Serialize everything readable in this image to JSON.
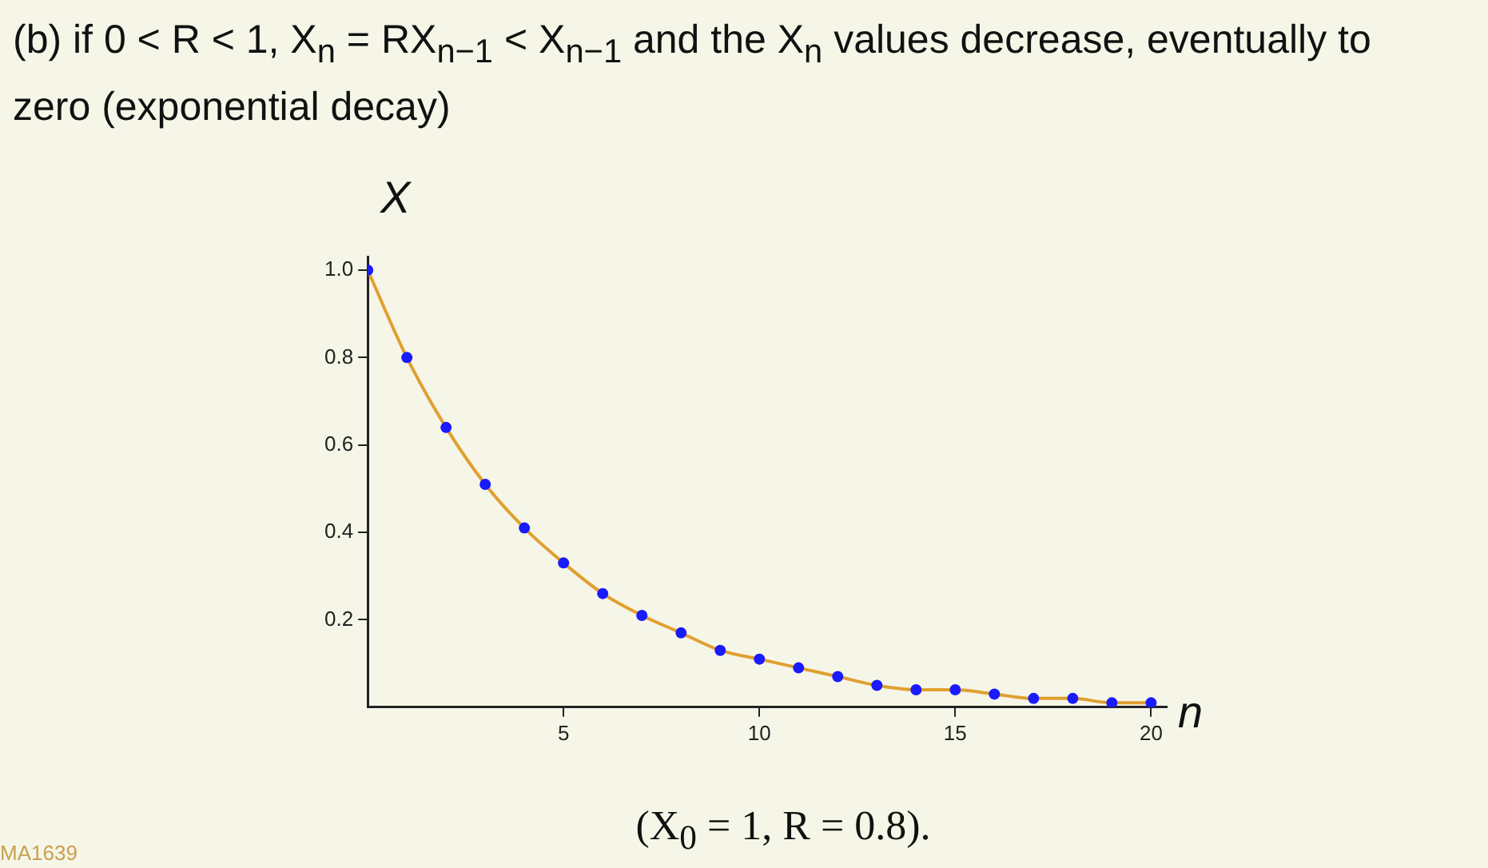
{
  "chart_data": {
    "type": "scatter",
    "title": "(b)   if 0 < R < 1, X$_{n}$ = RX$_{n−1}$ < X$_{n−1}$ and the X$_{n}$ values decrease, eventually to zero (exponential decay)",
    "xlabel": "n",
    "ylabel": "X",
    "annotations": [
      "(X$_{0}$ = 1, R = 0.8).",
      "MA1639"
    ],
    "x": [
      0,
      1,
      2,
      3,
      4,
      5,
      6,
      7,
      8,
      9,
      10,
      11,
      12,
      13,
      14,
      15,
      16,
      17,
      18,
      19,
      20
    ],
    "series": [
      {
        "type": "line",
        "color": "#e0a030",
        "marker": "none",
        "values": [
          1,
          0.8,
          0.64,
          0.51,
          0.41,
          0.33,
          0.26,
          0.21,
          0.17,
          0.13,
          0.11,
          0.09,
          0.07,
          0.05,
          0.04,
          0.04,
          0.03,
          0.02,
          0.02,
          0.01,
          0.01
        ]
      },
      {
        "type": "scatter",
        "color": "#1a1aff",
        "marker": "circle",
        "values": [
          1,
          0.8,
          0.64,
          0.51,
          0.41,
          0.33,
          0.26,
          0.21,
          0.17,
          0.13,
          0.11,
          0.09,
          0.07,
          0.05,
          0.04,
          0.04,
          0.03,
          0.02,
          0.02,
          0.01,
          0.01
        ]
      }
    ],
    "xlim": [
      0,
      20.4
    ],
    "xticks": [
      5,
      10,
      15,
      20
    ],
    "ylim": [
      0,
      1.03
    ],
    "yticks": [
      0.2,
      0.4,
      0.6,
      0.8,
      {
        "value": 1,
        "label": "1.0"
      }
    ]
  }
}
